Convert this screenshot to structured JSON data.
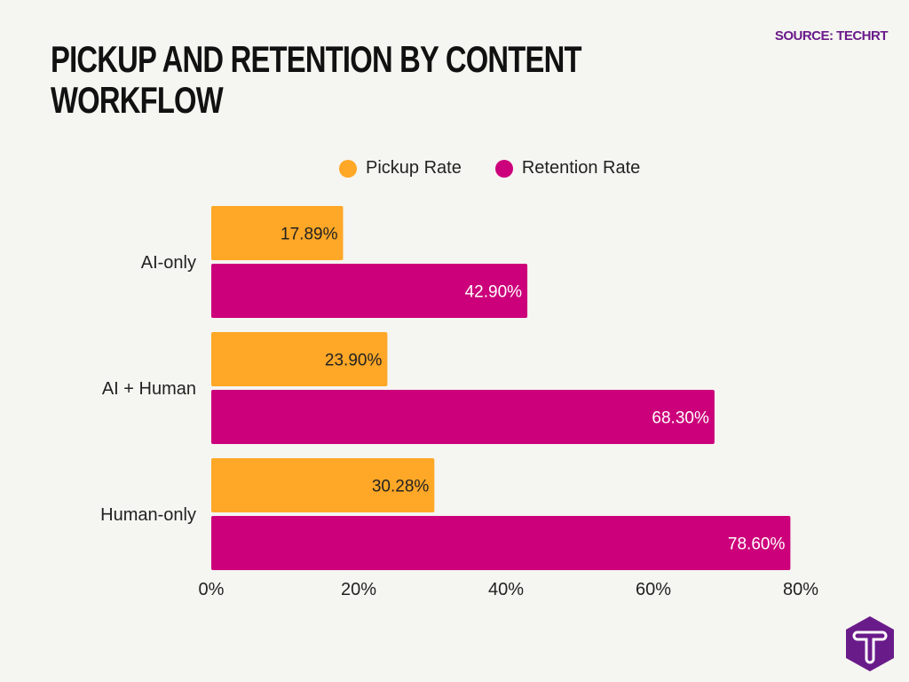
{
  "title": "PICKUP AND RETENTION BY CONTENT WORKFLOW",
  "source": "SOURCE: TECHRT",
  "logo": {
    "letter": "T",
    "color": "#6a1b8a"
  },
  "chart_data": {
    "type": "bar",
    "orientation": "horizontal",
    "title": "PICKUP AND RETENTION BY CONTENT WORKFLOW",
    "categories": [
      "AI-only",
      "AI + Human",
      "Human-only"
    ],
    "series": [
      {
        "name": "Pickup Rate",
        "color": "#ffa726",
        "values": [
          17.89,
          23.9,
          30.28
        ],
        "labels": [
          "17.89%",
          "23.90%",
          "30.28%"
        ]
      },
      {
        "name": "Retention Rate",
        "color": "#cc007a",
        "values": [
          42.9,
          68.3,
          78.6
        ],
        "labels": [
          "42.90%",
          "68.30%",
          "78.60%"
        ]
      }
    ],
    "xlim": [
      0,
      80
    ],
    "xticks": [
      "0%",
      "20%",
      "40%",
      "60%",
      "80%"
    ],
    "xlabel": "",
    "ylabel": "",
    "grid": false,
    "legend": "top"
  }
}
